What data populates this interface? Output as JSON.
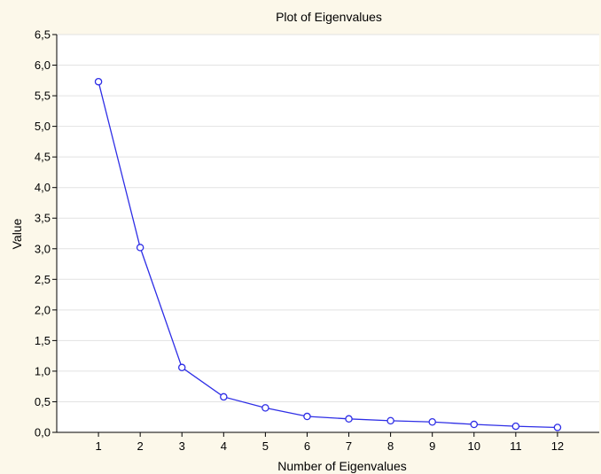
{
  "chart_data": {
    "type": "line",
    "title": "Plot of Eigenvalues",
    "xlabel": "Number of Eigenvalues",
    "ylabel": "Value",
    "x": [
      1,
      2,
      3,
      4,
      5,
      6,
      7,
      8,
      9,
      10,
      11,
      12
    ],
    "y": [
      5.73,
      3.02,
      1.06,
      0.58,
      0.4,
      0.26,
      0.22,
      0.19,
      0.17,
      0.13,
      0.1,
      0.08
    ],
    "x_tick_labels": [
      "1",
      "2",
      "3",
      "4",
      "5",
      "6",
      "7",
      "8",
      "9",
      "10",
      "11",
      "12"
    ],
    "y_ticks": [
      0,
      0.5,
      1.0,
      1.5,
      2.0,
      2.5,
      3.0,
      3.5,
      4.0,
      4.5,
      5.0,
      5.5,
      6.0,
      6.5
    ],
    "y_tick_labels": [
      "0,0",
      "0,5",
      "1,0",
      "1,5",
      "2,0",
      "2,5",
      "3,0",
      "3,5",
      "4,0",
      "4,5",
      "5,0",
      "5,5",
      "6,0",
      "6,5"
    ],
    "xlim": [
      0,
      13
    ],
    "ylim": [
      0,
      6.5
    ],
    "grid": "horizontal",
    "legend": "none",
    "line_color": "#2e2ee6",
    "marker": "open-circle",
    "plot_background": "#ffffff",
    "figure_background": "#fcf8ea"
  }
}
